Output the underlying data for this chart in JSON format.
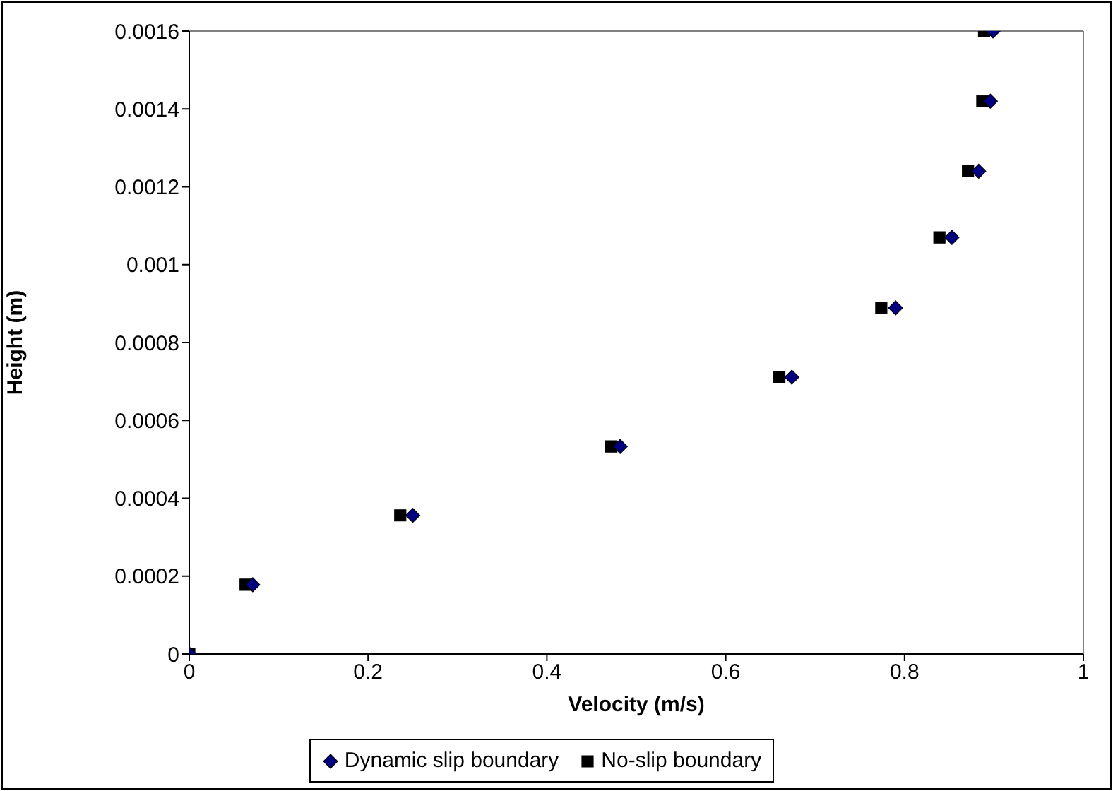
{
  "chart_data": {
    "type": "scatter",
    "xlabel": "Velocity (m/s)",
    "ylabel": "Height (m)",
    "xlim": [
      0,
      1
    ],
    "xticks": [
      0,
      0.2,
      0.4,
      0.6,
      0.8,
      1
    ],
    "ylim": [
      0,
      0.0016
    ],
    "yticks": [
      0,
      0.0002,
      0.0004,
      0.0006,
      0.0008,
      0.001,
      0.0012,
      0.0014,
      0.0016
    ],
    "grid": false,
    "legend": "bottom",
    "series": [
      {
        "name": "Dynamic slip boundary",
        "color": "#000080",
        "marker": "diamond",
        "x": [
          0,
          0.071,
          0.25,
          0.482,
          0.674,
          0.79,
          0.853,
          0.883,
          0.896,
          0.899
        ],
        "values": [
          0,
          0.000178,
          0.000356,
          0.000533,
          0.000711,
          0.000889,
          0.00107,
          0.00124,
          0.00142,
          0.0016
        ]
      },
      {
        "name": "No-slip boundary",
        "color": "#000000",
        "marker": "square",
        "x": [
          0,
          0.063,
          0.236,
          0.472,
          0.66,
          0.774,
          0.839,
          0.871,
          0.887,
          0.889
        ],
        "values": [
          0,
          0.000178,
          0.000356,
          0.000533,
          0.000711,
          0.000889,
          0.00107,
          0.00124,
          0.00142,
          0.0016
        ]
      }
    ]
  }
}
